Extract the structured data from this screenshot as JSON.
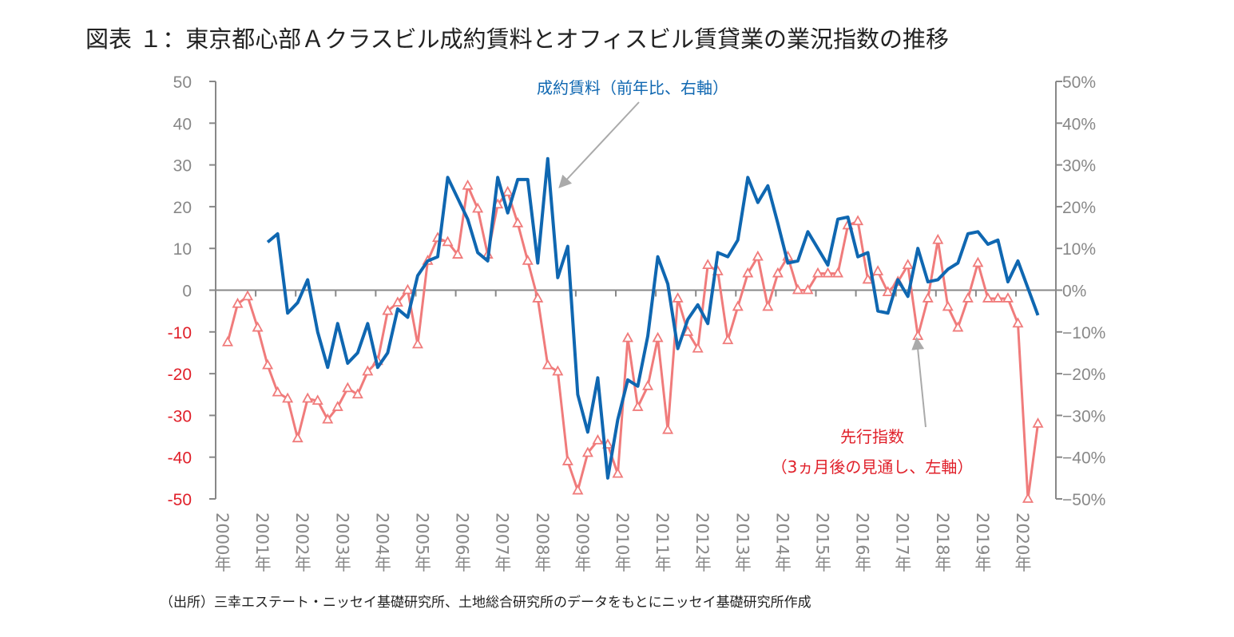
{
  "chart_data": {
    "type": "line",
    "title": "図表 １：東京都心部Ａクラスビル成約賃料とオフィスビル賃貸業の業況指数の推移",
    "x_tick_labels": [
      "2000年",
      "2001年",
      "2002年",
      "2003年",
      "2004年",
      "2005年",
      "2006年",
      "2007年",
      "2008年",
      "2009年",
      "2010年",
      "2011年",
      "2012年",
      "2013年",
      "2014年",
      "2015年",
      "2016年",
      "2017年",
      "2018年",
      "2019年",
      "2020年"
    ],
    "x_frequency": "quarterly",
    "x_start": "2000Q1",
    "left_axis": {
      "range": [
        -50,
        50
      ],
      "ticks": [
        "50",
        "40",
        "30",
        "20",
        "10",
        "0",
        "-10",
        "-20",
        "-30",
        "-40",
        "-50"
      ],
      "negative_color": "#e0202a",
      "positive_color": "#888888"
    },
    "right_axis": {
      "range": [
        -50,
        50
      ],
      "unit": "%",
      "ticks": [
        "50%",
        "40%",
        "30%",
        "20%",
        "10%",
        "0%",
        "−10%",
        "−20%",
        "−30%",
        "−40%",
        "−50%"
      ]
    },
    "grid": false,
    "series": [
      {
        "name": "成約賃料（前年比、右軸）",
        "axis": "right",
        "color": "#0f67b1",
        "marker": "none",
        "start_index": 4,
        "values": [
          11.5,
          13.5,
          -5.5,
          -3,
          2.5,
          -10,
          -18.5,
          -8,
          -17.5,
          -15,
          -8,
          -18.5,
          -15,
          -4.5,
          -6.5,
          3.5,
          7,
          8,
          27,
          22,
          17,
          9,
          7,
          27,
          18.5,
          26.5,
          26.5,
          6.5,
          31.5,
          3,
          10.5,
          -25,
          -34,
          -21,
          -45,
          -31,
          -21.5,
          -23,
          -11,
          8,
          1.5,
          -14,
          -7,
          -3.5,
          -8,
          9,
          8,
          12,
          27,
          21,
          25,
          16,
          6.5,
          7,
          14,
          10,
          6,
          17,
          17.5,
          8,
          9,
          -5,
          -5.5,
          2.5,
          -1.5,
          10,
          2,
          2.5,
          5,
          6.5,
          13.5,
          14,
          11,
          12,
          2,
          7,
          0.5,
          -6
        ]
      },
      {
        "name": "先行指数",
        "name_line2": "（3ヵ月後の見通し、左軸）",
        "axis": "left",
        "color": "#f07b7b",
        "marker": "triangle",
        "start_index": 0,
        "values": [
          -12.5,
          -3.3,
          -1.5,
          -9,
          -18,
          -24.5,
          -26,
          -35.5,
          -26,
          -26.5,
          -31,
          -28,
          -23.5,
          -25,
          -19.5,
          -17,
          -5,
          -3,
          0,
          -13,
          7,
          12.5,
          11.5,
          8.5,
          25,
          19.5,
          8.5,
          20.5,
          23.5,
          16,
          7,
          -2,
          -18,
          -19.5,
          -41,
          -48,
          -39,
          -36,
          -37,
          -44,
          -11.5,
          -28,
          -23,
          -11.5,
          -33.5,
          -2,
          -10,
          -14,
          6,
          4.5,
          -12,
          -4,
          4,
          8,
          -4,
          4,
          8,
          0,
          0,
          4,
          4,
          4,
          15.5,
          16.5,
          2.5,
          4.5,
          -0.5,
          2,
          6,
          -11,
          -2,
          12,
          -4,
          -9,
          -2,
          6.5,
          -2,
          -2,
          -2,
          -8,
          -50,
          -32
        ]
      }
    ]
  },
  "footer": "（出所）三幸エステート・ニッセイ基礎研究所、土地総合研究所のデータをもとにニッセイ基礎研究所作成"
}
